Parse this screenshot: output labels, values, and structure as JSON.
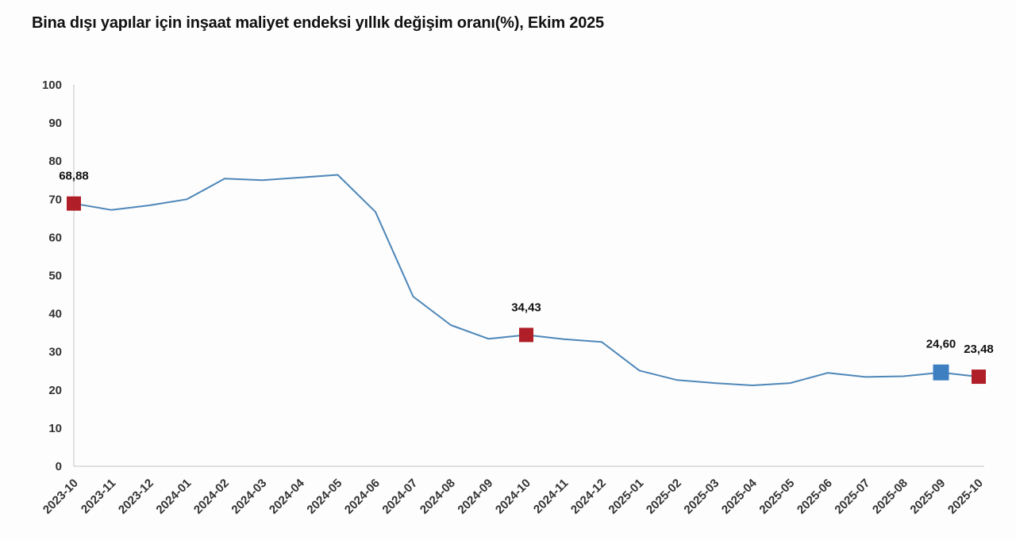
{
  "page": {
    "title": "Bina dışı yapılar için inşaat maliyet endeksi yıllık değişim oranı(%), Ekim 2025"
  },
  "chart_data": {
    "type": "line",
    "title": "Bina dışı yapılar için inşaat maliyet endeksi yıllık değişim oranı(%), Ekim 2025",
    "xlabel": "",
    "ylabel": "",
    "grid": false,
    "legend": false,
    "ylim": [
      0,
      100
    ],
    "yticks": [
      0,
      10,
      20,
      30,
      40,
      50,
      60,
      70,
      80,
      90,
      100
    ],
    "x": [
      "2023-10",
      "2023-11",
      "2023-12",
      "2024-01",
      "2024-02",
      "2024-03",
      "2024-04",
      "2024-05",
      "2024-06",
      "2024-07",
      "2024-08",
      "2024-09",
      "2024-10",
      "2024-11",
      "2024-12",
      "2025-01",
      "2025-02",
      "2025-03",
      "2025-04",
      "2025-05",
      "2025-06",
      "2025-07",
      "2025-08",
      "2025-09",
      "2025-10"
    ],
    "values": [
      68.88,
      67.2,
      68.4,
      70.0,
      75.4,
      75.0,
      75.7,
      76.4,
      66.7,
      44.5,
      37.0,
      33.4,
      34.43,
      33.3,
      32.6,
      25.1,
      22.6,
      21.8,
      21.2,
      21.8,
      24.5,
      23.4,
      23.6,
      24.6,
      23.48
    ],
    "line_color": "#4e87b8",
    "axis_color": "#d6d6d6",
    "tick_label_color": "#333333",
    "data_label_color": "#111111",
    "annotated_points": [
      {
        "index": 0,
        "label": "68,88",
        "marker_color": "#b01e28",
        "size": 18
      },
      {
        "index": 12,
        "label": "34,43",
        "marker_color": "#b01e28",
        "size": 18
      },
      {
        "index": 23,
        "label": "24,60",
        "marker_color": "#3d7fc1",
        "size": 20
      },
      {
        "index": 24,
        "label": "23,48",
        "marker_color": "#b01e28",
        "size": 18
      }
    ]
  }
}
